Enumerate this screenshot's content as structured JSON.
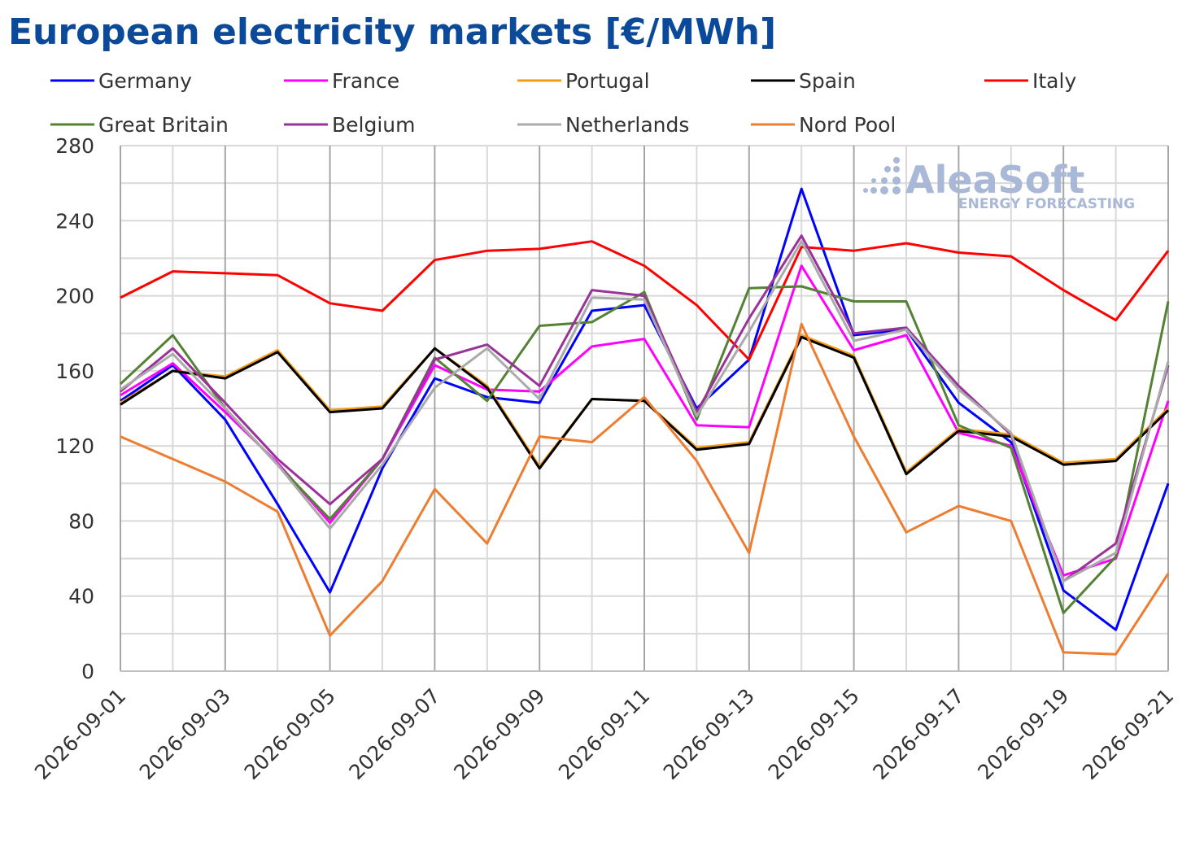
{
  "title": "European electricity markets [€/MWh]",
  "watermark": {
    "brand": "AleaSoft",
    "tagline": "ENERGY FORECASTING"
  },
  "chart_data": {
    "type": "line",
    "title": "European electricity markets [€/MWh]",
    "xlabel": "",
    "ylabel": "",
    "ylim": [
      0,
      280
    ],
    "yticks": [
      0,
      40,
      80,
      120,
      160,
      200,
      240,
      280
    ],
    "grid": true,
    "legend_position": "top",
    "x": [
      "2026-09-01",
      "2026-09-02",
      "2026-09-03",
      "2026-09-04",
      "2026-09-05",
      "2026-09-06",
      "2026-09-07",
      "2026-09-08",
      "2026-09-09",
      "2026-09-10",
      "2026-09-11",
      "2026-09-12",
      "2026-09-13",
      "2026-09-14",
      "2026-09-15",
      "2026-09-16",
      "2026-09-17",
      "2026-09-18",
      "2026-09-19",
      "2026-09-20",
      "2026-09-21"
    ],
    "xticks": [
      "2026-09-01",
      "2026-09-03",
      "2026-09-05",
      "2026-09-07",
      "2026-09-09",
      "2026-09-11",
      "2026-09-13",
      "2026-09-15",
      "2026-09-17",
      "2026-09-19",
      "2026-09-21"
    ],
    "series": [
      {
        "name": "Germany",
        "color": "#0000ff",
        "values": [
          144,
          163,
          134,
          89,
          42,
          108,
          156,
          146,
          143,
          192,
          195,
          140,
          166,
          257,
          179,
          182,
          143,
          122,
          43,
          22,
          100
        ]
      },
      {
        "name": "France",
        "color": "#ff00ff",
        "values": [
          147,
          164,
          138,
          111,
          79,
          113,
          163,
          150,
          149,
          173,
          177,
          131,
          130,
          216,
          171,
          179,
          127,
          120,
          51,
          60,
          144
        ]
      },
      {
        "name": "Portugal",
        "color": "#f39c12",
        "values": [
          143,
          160,
          157,
          171,
          139,
          141,
          172,
          152,
          109,
          145,
          144,
          119,
          122,
          179,
          168,
          106,
          129,
          126,
          111,
          113,
          140
        ]
      },
      {
        "name": "Spain",
        "color": "#000000",
        "values": [
          142,
          160,
          156,
          170,
          138,
          140,
          172,
          151,
          108,
          145,
          144,
          118,
          121,
          178,
          167,
          105,
          128,
          125,
          110,
          112,
          139
        ]
      },
      {
        "name": "Italy",
        "color": "#ff0000",
        "values": [
          199,
          213,
          212,
          211,
          196,
          192,
          219,
          224,
          225,
          229,
          216,
          195,
          166,
          226,
          224,
          228,
          223,
          221,
          203,
          187,
          224
        ]
      },
      {
        "name": "Great Britain",
        "color": "#548235",
        "values": [
          153,
          179,
          140,
          110,
          81,
          113,
          167,
          144,
          184,
          186,
          202,
          134,
          204,
          205,
          197,
          197,
          131,
          119,
          31,
          61,
          197
        ]
      },
      {
        "name": "Belgium",
        "color": "#993399",
        "values": [
          149,
          172,
          143,
          113,
          89,
          113,
          166,
          174,
          152,
          203,
          200,
          138,
          188,
          232,
          180,
          183,
          152,
          126,
          48,
          68,
          163
        ]
      },
      {
        "name": "Netherlands",
        "color": "#aaaaaa",
        "values": [
          150,
          169,
          140,
          110,
          76,
          110,
          151,
          172,
          145,
          199,
          198,
          136,
          181,
          229,
          176,
          182,
          150,
          127,
          48,
          63,
          165
        ]
      },
      {
        "name": "Nord Pool",
        "color": "#ed7d31",
        "values": [
          125,
          113,
          101,
          85,
          19,
          48,
          97,
          68,
          125,
          122,
          146,
          112,
          63,
          185,
          125,
          74,
          88,
          80,
          10,
          9,
          52
        ]
      }
    ]
  }
}
